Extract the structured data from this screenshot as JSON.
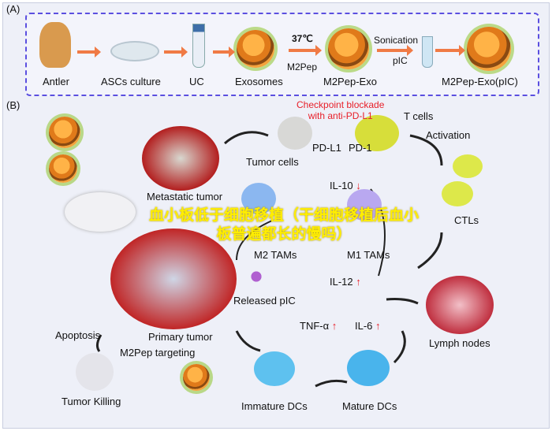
{
  "panel_a": {
    "label": "(A)",
    "steps": [
      "Antler",
      "ASCs culture",
      "UC",
      "Exosomes",
      "M2Pep-Exo",
      "M2Pep-Exo(pIC)"
    ],
    "temp": "37℃",
    "m2pep": "M2Pep",
    "sonication": "Sonication",
    "pic": "pIC"
  },
  "panel_b": {
    "label": "(B)",
    "checkpoint": "Checkpoint blockade\nwith anti-PD-L1",
    "t_cells": "T cells",
    "pd_l1": "PD-L1",
    "pd_1": "PD-1",
    "tumor_cells": "Tumor cells",
    "activation": "Activation",
    "metastatic_tumor": "Metastatic tumor",
    "il10": "IL-10",
    "m2_tams": "M2 TAMs",
    "m1_tams": "M1 TAMs",
    "ctls": "CTLs",
    "il12": "IL-12",
    "released_pic": "Released pIC",
    "tnf": "TNF-α",
    "il6": "IL-6",
    "apoptosis": "Apoptosis",
    "primary_tumor": "Primary tumor",
    "m2pep_targeting": "M2Pep targeting",
    "lymph_nodes": "Lymph nodes",
    "tumor_killing": "Tumor Killing",
    "immature_dcs": "Immature DCs",
    "mature_dcs": "Mature DCs",
    "up_arrow": "↑",
    "down_arrow": "↓"
  },
  "overlay_text": "血小板低于细胞移植（干细胞移植后血小板普遍都长的慢吗）",
  "colors": {
    "accent_border": "#5b4fe0",
    "arrow": "#f07a45",
    "red_text": "#e8202a",
    "overlay": "#ffee00"
  }
}
